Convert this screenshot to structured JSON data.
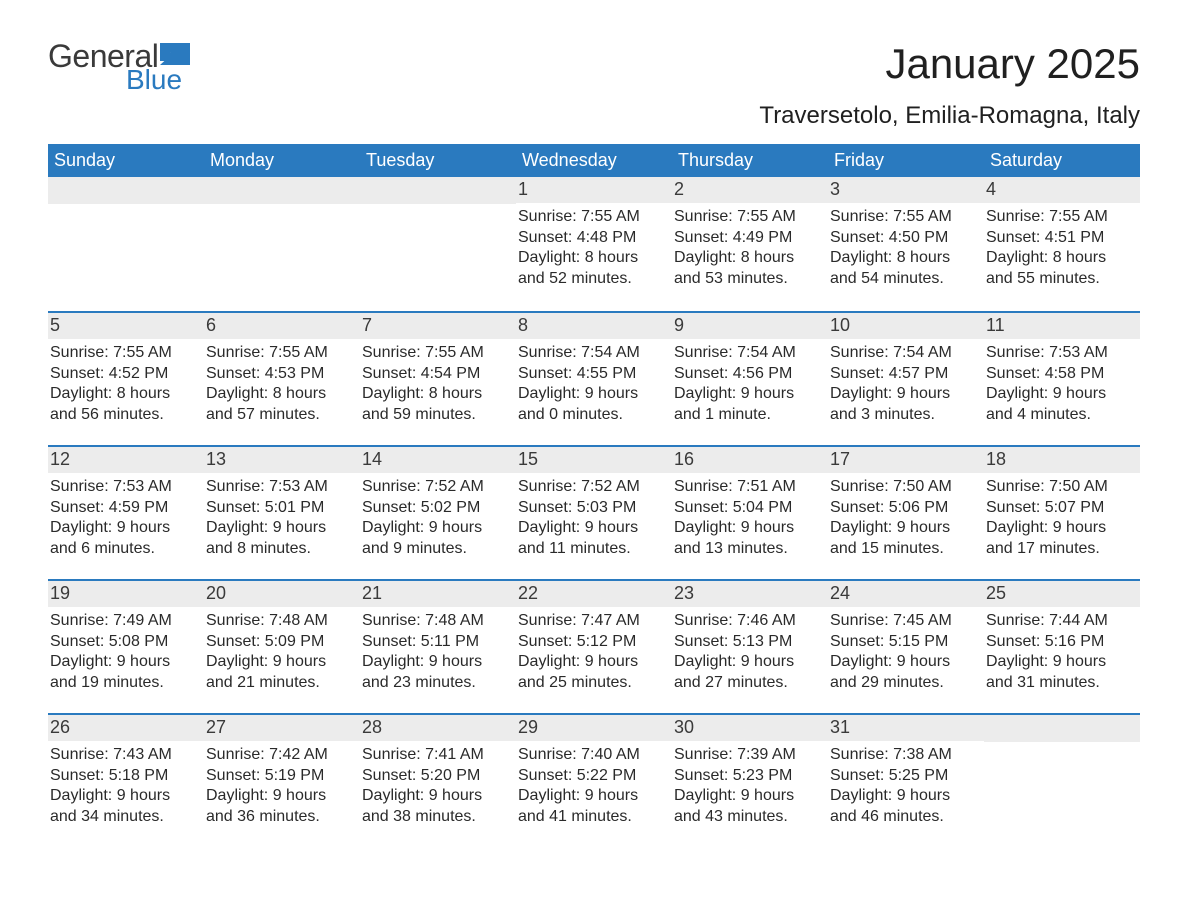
{
  "logo": {
    "text1": "General",
    "text2": "Blue",
    "flag_color": "#2a7abf"
  },
  "title": "January 2025",
  "subtitle": "Traversetolo, Emilia-Romagna, Italy",
  "colors": {
    "header_bg": "#2a7abf",
    "header_text": "#ffffff",
    "daynum_bg": "#ececec",
    "text": "#2a2a2a",
    "week_border": "#2a7abf"
  },
  "day_labels": [
    "Sunday",
    "Monday",
    "Tuesday",
    "Wednesday",
    "Thursday",
    "Friday",
    "Saturday"
  ],
  "weeks": [
    [
      {
        "day": null
      },
      {
        "day": null
      },
      {
        "day": null
      },
      {
        "day": "1",
        "sunrise": "Sunrise: 7:55 AM",
        "sunset": "Sunset: 4:48 PM",
        "daylight1": "Daylight: 8 hours",
        "daylight2": "and 52 minutes."
      },
      {
        "day": "2",
        "sunrise": "Sunrise: 7:55 AM",
        "sunset": "Sunset: 4:49 PM",
        "daylight1": "Daylight: 8 hours",
        "daylight2": "and 53 minutes."
      },
      {
        "day": "3",
        "sunrise": "Sunrise: 7:55 AM",
        "sunset": "Sunset: 4:50 PM",
        "daylight1": "Daylight: 8 hours",
        "daylight2": "and 54 minutes."
      },
      {
        "day": "4",
        "sunrise": "Sunrise: 7:55 AM",
        "sunset": "Sunset: 4:51 PM",
        "daylight1": "Daylight: 8 hours",
        "daylight2": "and 55 minutes."
      }
    ],
    [
      {
        "day": "5",
        "sunrise": "Sunrise: 7:55 AM",
        "sunset": "Sunset: 4:52 PM",
        "daylight1": "Daylight: 8 hours",
        "daylight2": "and 56 minutes."
      },
      {
        "day": "6",
        "sunrise": "Sunrise: 7:55 AM",
        "sunset": "Sunset: 4:53 PM",
        "daylight1": "Daylight: 8 hours",
        "daylight2": "and 57 minutes."
      },
      {
        "day": "7",
        "sunrise": "Sunrise: 7:55 AM",
        "sunset": "Sunset: 4:54 PM",
        "daylight1": "Daylight: 8 hours",
        "daylight2": "and 59 minutes."
      },
      {
        "day": "8",
        "sunrise": "Sunrise: 7:54 AM",
        "sunset": "Sunset: 4:55 PM",
        "daylight1": "Daylight: 9 hours",
        "daylight2": "and 0 minutes."
      },
      {
        "day": "9",
        "sunrise": "Sunrise: 7:54 AM",
        "sunset": "Sunset: 4:56 PM",
        "daylight1": "Daylight: 9 hours",
        "daylight2": "and 1 minute."
      },
      {
        "day": "10",
        "sunrise": "Sunrise: 7:54 AM",
        "sunset": "Sunset: 4:57 PM",
        "daylight1": "Daylight: 9 hours",
        "daylight2": "and 3 minutes."
      },
      {
        "day": "11",
        "sunrise": "Sunrise: 7:53 AM",
        "sunset": "Sunset: 4:58 PM",
        "daylight1": "Daylight: 9 hours",
        "daylight2": "and 4 minutes."
      }
    ],
    [
      {
        "day": "12",
        "sunrise": "Sunrise: 7:53 AM",
        "sunset": "Sunset: 4:59 PM",
        "daylight1": "Daylight: 9 hours",
        "daylight2": "and 6 minutes."
      },
      {
        "day": "13",
        "sunrise": "Sunrise: 7:53 AM",
        "sunset": "Sunset: 5:01 PM",
        "daylight1": "Daylight: 9 hours",
        "daylight2": "and 8 minutes."
      },
      {
        "day": "14",
        "sunrise": "Sunrise: 7:52 AM",
        "sunset": "Sunset: 5:02 PM",
        "daylight1": "Daylight: 9 hours",
        "daylight2": "and 9 minutes."
      },
      {
        "day": "15",
        "sunrise": "Sunrise: 7:52 AM",
        "sunset": "Sunset: 5:03 PM",
        "daylight1": "Daylight: 9 hours",
        "daylight2": "and 11 minutes."
      },
      {
        "day": "16",
        "sunrise": "Sunrise: 7:51 AM",
        "sunset": "Sunset: 5:04 PM",
        "daylight1": "Daylight: 9 hours",
        "daylight2": "and 13 minutes."
      },
      {
        "day": "17",
        "sunrise": "Sunrise: 7:50 AM",
        "sunset": "Sunset: 5:06 PM",
        "daylight1": "Daylight: 9 hours",
        "daylight2": "and 15 minutes."
      },
      {
        "day": "18",
        "sunrise": "Sunrise: 7:50 AM",
        "sunset": "Sunset: 5:07 PM",
        "daylight1": "Daylight: 9 hours",
        "daylight2": "and 17 minutes."
      }
    ],
    [
      {
        "day": "19",
        "sunrise": "Sunrise: 7:49 AM",
        "sunset": "Sunset: 5:08 PM",
        "daylight1": "Daylight: 9 hours",
        "daylight2": "and 19 minutes."
      },
      {
        "day": "20",
        "sunrise": "Sunrise: 7:48 AM",
        "sunset": "Sunset: 5:09 PM",
        "daylight1": "Daylight: 9 hours",
        "daylight2": "and 21 minutes."
      },
      {
        "day": "21",
        "sunrise": "Sunrise: 7:48 AM",
        "sunset": "Sunset: 5:11 PM",
        "daylight1": "Daylight: 9 hours",
        "daylight2": "and 23 minutes."
      },
      {
        "day": "22",
        "sunrise": "Sunrise: 7:47 AM",
        "sunset": "Sunset: 5:12 PM",
        "daylight1": "Daylight: 9 hours",
        "daylight2": "and 25 minutes."
      },
      {
        "day": "23",
        "sunrise": "Sunrise: 7:46 AM",
        "sunset": "Sunset: 5:13 PM",
        "daylight1": "Daylight: 9 hours",
        "daylight2": "and 27 minutes."
      },
      {
        "day": "24",
        "sunrise": "Sunrise: 7:45 AM",
        "sunset": "Sunset: 5:15 PM",
        "daylight1": "Daylight: 9 hours",
        "daylight2": "and 29 minutes."
      },
      {
        "day": "25",
        "sunrise": "Sunrise: 7:44 AM",
        "sunset": "Sunset: 5:16 PM",
        "daylight1": "Daylight: 9 hours",
        "daylight2": "and 31 minutes."
      }
    ],
    [
      {
        "day": "26",
        "sunrise": "Sunrise: 7:43 AM",
        "sunset": "Sunset: 5:18 PM",
        "daylight1": "Daylight: 9 hours",
        "daylight2": "and 34 minutes."
      },
      {
        "day": "27",
        "sunrise": "Sunrise: 7:42 AM",
        "sunset": "Sunset: 5:19 PM",
        "daylight1": "Daylight: 9 hours",
        "daylight2": "and 36 minutes."
      },
      {
        "day": "28",
        "sunrise": "Sunrise: 7:41 AM",
        "sunset": "Sunset: 5:20 PM",
        "daylight1": "Daylight: 9 hours",
        "daylight2": "and 38 minutes."
      },
      {
        "day": "29",
        "sunrise": "Sunrise: 7:40 AM",
        "sunset": "Sunset: 5:22 PM",
        "daylight1": "Daylight: 9 hours",
        "daylight2": "and 41 minutes."
      },
      {
        "day": "30",
        "sunrise": "Sunrise: 7:39 AM",
        "sunset": "Sunset: 5:23 PM",
        "daylight1": "Daylight: 9 hours",
        "daylight2": "and 43 minutes."
      },
      {
        "day": "31",
        "sunrise": "Sunrise: 7:38 AM",
        "sunset": "Sunset: 5:25 PM",
        "daylight1": "Daylight: 9 hours",
        "daylight2": "and 46 minutes."
      },
      {
        "day": null
      }
    ]
  ]
}
